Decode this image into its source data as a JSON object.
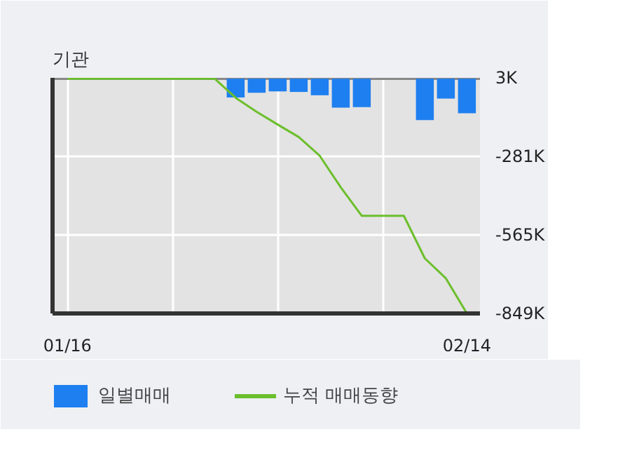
{
  "chart_data": {
    "type": "bar",
    "title": "기관",
    "categories": [
      "01/16",
      null,
      null,
      null,
      null,
      null,
      null,
      null,
      null,
      null,
      null,
      null,
      null,
      null,
      null,
      null,
      null,
      null,
      null,
      "02/14"
    ],
    "series": [
      {
        "name": "일별매매",
        "color": "#1e7ff0",
        "values": [
          0,
          0,
          0,
          0,
          0,
          0,
          0,
          0,
          -68,
          -51,
          -46,
          -48,
          -60,
          -105,
          -103,
          0,
          0,
          -150,
          -72,
          -125
        ]
      },
      {
        "name": "누적 매매동향",
        "type": "line",
        "color": "#6cbf2c",
        "values": [
          0,
          0,
          0,
          0,
          0,
          0,
          0,
          0,
          -69,
          -120,
          -166,
          -211,
          -279,
          -393,
          -496,
          -496,
          -496,
          -650,
          -722,
          -849
        ]
      }
    ],
    "ylim": [
      -849,
      3
    ],
    "yticks": [
      {
        "value": 3,
        "label": "3K"
      },
      {
        "value": -281,
        "label": "-281K"
      },
      {
        "value": -565,
        "label": "-565K"
      },
      {
        "value": -849,
        "label": "-849K"
      }
    ],
    "grid": true,
    "legend": "bottom"
  }
}
